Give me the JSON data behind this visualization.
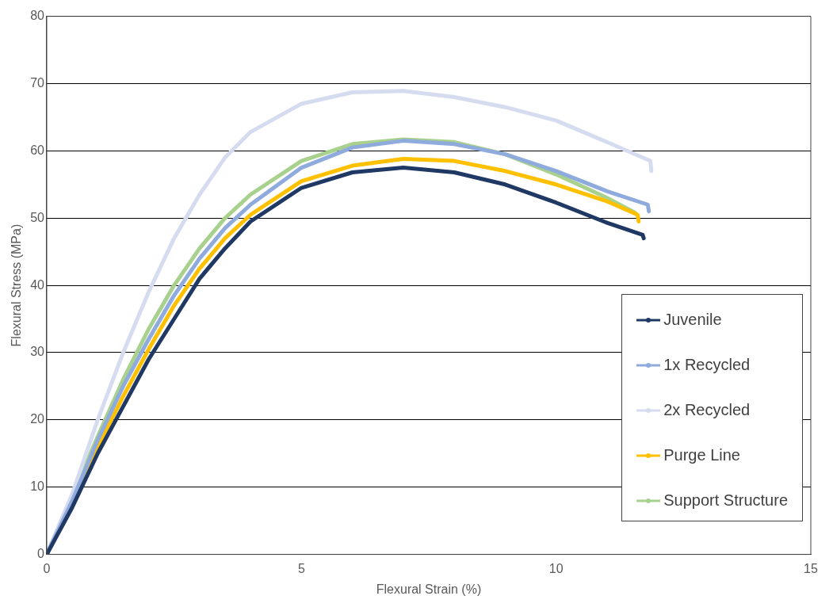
{
  "chart_data": {
    "type": "line",
    "xlabel": "Flexural Strain (%)",
    "ylabel": "Flexural Stress (MPa)",
    "xlim": [
      0,
      15
    ],
    "xticks": [
      0,
      5,
      10,
      15
    ],
    "ylim": [
      0,
      80
    ],
    "yticks": [
      0,
      10,
      20,
      30,
      40,
      50,
      60,
      70,
      80
    ],
    "grid": "y",
    "legend": "bottom right",
    "marker": "none",
    "line_style": "solid",
    "series": [
      {
        "name": "Juvenile",
        "color": "#1f3864",
        "x": [
          0,
          0.5,
          1,
          1.5,
          2,
          2.5,
          3,
          3.5,
          4,
          5,
          6,
          7,
          8,
          9,
          10,
          11,
          11.7,
          11.72
        ],
        "values": [
          0,
          7,
          15,
          22,
          29,
          35,
          41,
          45.5,
          49.5,
          54.5,
          56.8,
          57.5,
          56.8,
          55,
          52.3,
          49.3,
          47.5,
          47
        ]
      },
      {
        "name": "1x Recycled",
        "color": "#8faadc",
        "x": [
          0,
          0.5,
          1,
          1.5,
          2,
          2.5,
          3,
          3.5,
          4,
          5,
          6,
          7,
          8,
          9,
          10,
          11,
          11.8,
          11.82
        ],
        "values": [
          0,
          8,
          17,
          25,
          32,
          38.5,
          44,
          48.5,
          52,
          57.5,
          60.5,
          61.5,
          61,
          59.5,
          57,
          54,
          52,
          51
        ]
      },
      {
        "name": "2x Recycled",
        "color": "#d6dcf0",
        "x": [
          0,
          0.5,
          1,
          1.5,
          2,
          2.5,
          3,
          3.5,
          4,
          5,
          6,
          7,
          8,
          9,
          10,
          11,
          11.85,
          11.87
        ],
        "values": [
          0,
          9,
          20,
          30,
          39,
          47,
          53.5,
          59,
          62.8,
          67,
          68.7,
          68.9,
          68,
          66.5,
          64.5,
          61.3,
          58.5,
          57
        ]
      },
      {
        "name": "Purge Line",
        "color": "#ffc000",
        "x": [
          0,
          1,
          1.5,
          2,
          2.5,
          3,
          3.5,
          4,
          5,
          6,
          7,
          8,
          9,
          10,
          11,
          11.6,
          11.62
        ],
        "values": [
          0,
          16,
          23.5,
          30.5,
          37,
          42.5,
          47,
          50.5,
          55.5,
          57.8,
          58.8,
          58.5,
          57,
          55,
          52.5,
          50.5,
          49.5
        ]
      },
      {
        "name": "Support Structure",
        "color": "#a9d18e",
        "x": [
          0,
          1,
          1.5,
          2,
          2.5,
          3,
          3.5,
          4,
          5,
          6,
          7,
          8,
          9,
          10,
          11,
          11.55
        ],
        "values": [
          0,
          17.5,
          26,
          33.5,
          40,
          45.5,
          50,
          53.5,
          58.5,
          61,
          61.7,
          61.3,
          59.5,
          56.5,
          53,
          50.8
        ]
      }
    ]
  }
}
